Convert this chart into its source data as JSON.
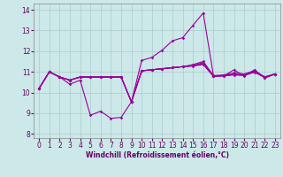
{
  "xlabel": "Windchill (Refroidissement éolien,°C)",
  "ylabel": "",
  "background_color": "#cce8e8",
  "grid_color": "#aacccc",
  "line_color": "#990099",
  "marker": "D",
  "marker_size": 1.8,
  "line_width": 0.8,
  "xlim": [
    -0.5,
    23.5
  ],
  "ylim": [
    7.8,
    14.3
  ],
  "yticks": [
    8,
    9,
    10,
    11,
    12,
    13,
    14
  ],
  "xticks": [
    0,
    1,
    2,
    3,
    4,
    5,
    6,
    7,
    8,
    9,
    10,
    11,
    12,
    13,
    14,
    15,
    16,
    17,
    18,
    19,
    20,
    21,
    22,
    23
  ],
  "lines": [
    [
      10.2,
      11.0,
      10.75,
      10.4,
      10.6,
      8.9,
      9.1,
      8.75,
      8.8,
      9.55,
      11.55,
      11.7,
      12.05,
      12.5,
      12.65,
      13.25,
      13.85,
      10.8,
      10.8,
      11.1,
      10.8,
      11.1,
      10.7,
      10.9
    ],
    [
      10.2,
      11.0,
      10.75,
      10.6,
      10.75,
      10.75,
      10.75,
      10.75,
      10.75,
      9.55,
      11.05,
      11.1,
      11.15,
      11.2,
      11.25,
      11.3,
      11.45,
      10.8,
      10.82,
      10.88,
      10.85,
      11.05,
      10.75,
      10.9
    ],
    [
      10.2,
      11.0,
      10.75,
      10.6,
      10.75,
      10.75,
      10.75,
      10.75,
      10.75,
      9.55,
      11.05,
      11.1,
      11.15,
      11.2,
      11.25,
      11.35,
      11.5,
      10.82,
      10.85,
      10.95,
      10.9,
      11.05,
      10.75,
      10.9
    ],
    [
      10.2,
      11.0,
      10.75,
      10.6,
      10.75,
      10.75,
      10.75,
      10.75,
      10.75,
      9.55,
      11.05,
      11.1,
      11.15,
      11.2,
      11.25,
      11.3,
      11.4,
      10.8,
      10.82,
      10.88,
      10.85,
      11.0,
      10.75,
      10.9
    ],
    [
      10.2,
      11.0,
      10.75,
      10.6,
      10.75,
      10.75,
      10.75,
      10.75,
      10.75,
      9.55,
      11.05,
      11.1,
      11.15,
      11.2,
      11.25,
      11.28,
      11.35,
      10.78,
      10.8,
      10.85,
      10.82,
      10.98,
      10.72,
      10.88
    ]
  ],
  "tick_color": "#660066",
  "label_fontsize": 5.5,
  "tick_fontsize": 5.5
}
